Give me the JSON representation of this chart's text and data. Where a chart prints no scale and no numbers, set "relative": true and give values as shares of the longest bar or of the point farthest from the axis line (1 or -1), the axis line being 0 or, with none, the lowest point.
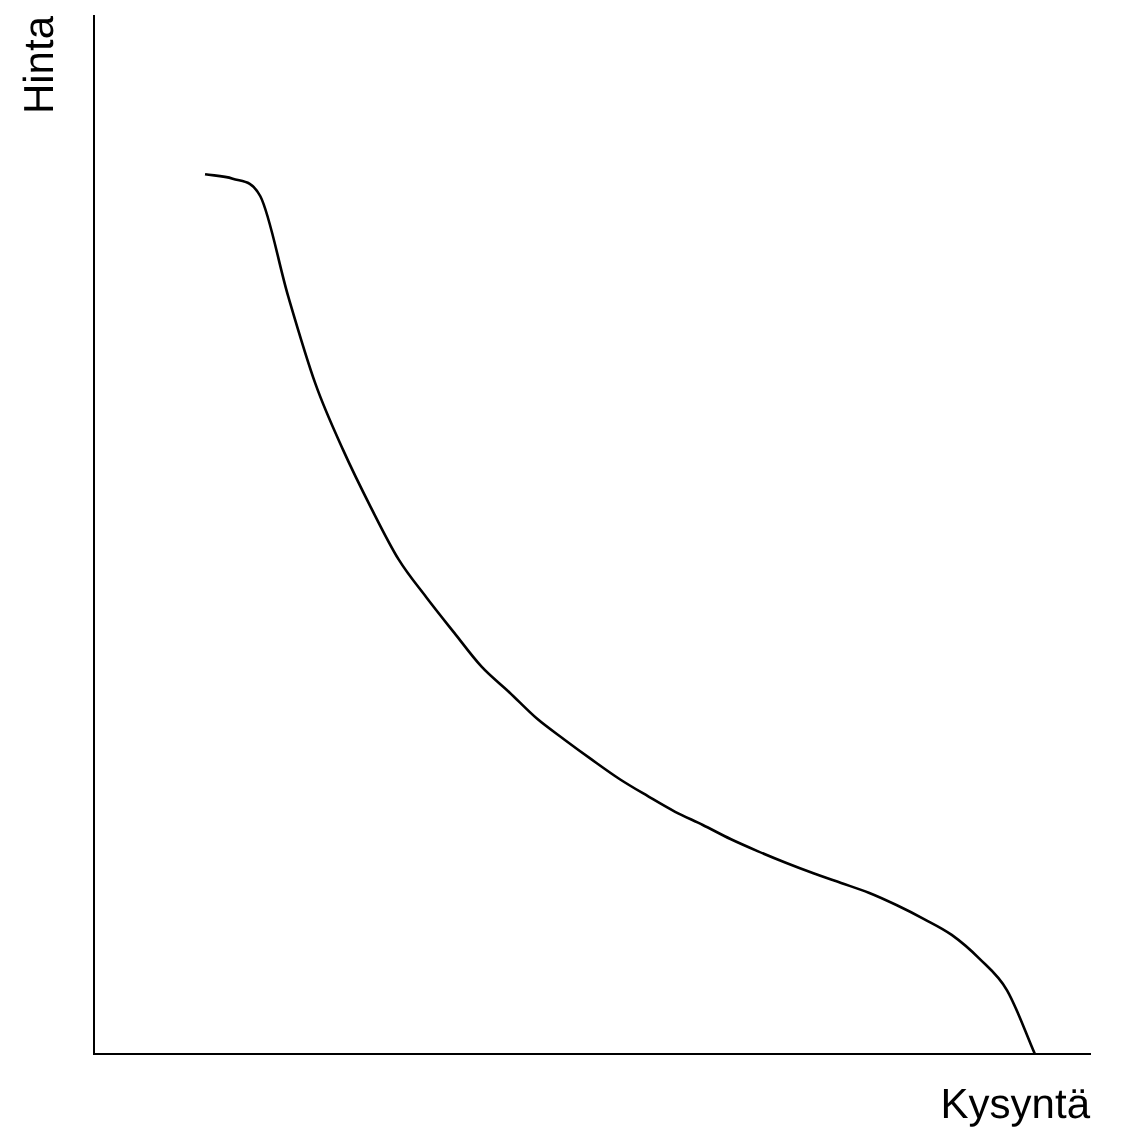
{
  "chart_data": {
    "type": "line",
    "xlabel": "Kysyntä",
    "ylabel": "Hinta",
    "relative": true,
    "marker": "none",
    "color": "#000000",
    "categories": [
      null,
      null,
      null,
      null,
      null,
      null,
      null,
      null,
      null,
      null,
      null,
      null,
      null,
      null,
      null,
      null,
      null,
      null,
      null,
      null,
      null,
      null,
      null,
      null,
      null,
      null,
      null,
      null,
      null,
      null,
      null,
      null,
      null,
      null,
      null,
      null,
      null
    ],
    "values": [
      null,
      null,
      null,
      null,
      1.0,
      0.995,
      0.975,
      0.862,
      0.761,
      0.686,
      0.621,
      0.562,
      0.519,
      0.479,
      0.44,
      0.411,
      0.381,
      0.357,
      0.334,
      0.312,
      0.293,
      0.275,
      0.26,
      0.244,
      0.23,
      0.217,
      0.205,
      0.194,
      0.183,
      0.169,
      0.153,
      0.135,
      0.108,
      0.072,
      0,
      null,
      null
    ]
  }
}
